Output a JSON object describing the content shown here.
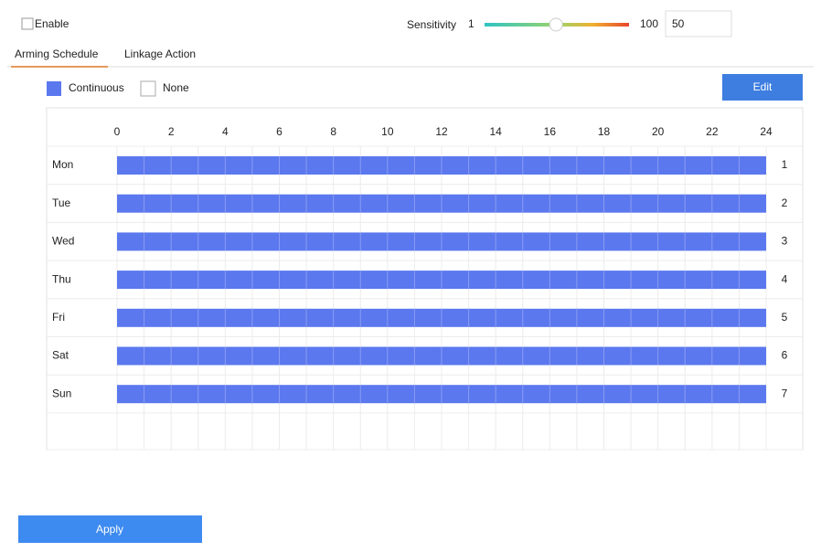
{
  "header": {
    "enable_label": "Enable",
    "sensitivity": {
      "label": "Sensitivity",
      "min": 1,
      "max": 100,
      "value": 50
    }
  },
  "tabs": [
    "Arming Schedule",
    "Linkage Action"
  ],
  "legend": [
    "Continuous",
    "None"
  ],
  "edit_button": "Edit",
  "schedule": {
    "hours": [
      0,
      2,
      4,
      6,
      8,
      10,
      12,
      14,
      16,
      18,
      20,
      22,
      24
    ],
    "days": [
      {
        "label": "Mon",
        "number": 1
      },
      {
        "label": "Tue",
        "number": 2
      },
      {
        "label": "Wed",
        "number": 3
      },
      {
        "label": "Thu",
        "number": 4
      },
      {
        "label": "Fri",
        "number": 5
      },
      {
        "label": "Sat",
        "number": 6
      },
      {
        "label": "Sun",
        "number": 7
      }
    ]
  },
  "apply_button": "Apply"
}
